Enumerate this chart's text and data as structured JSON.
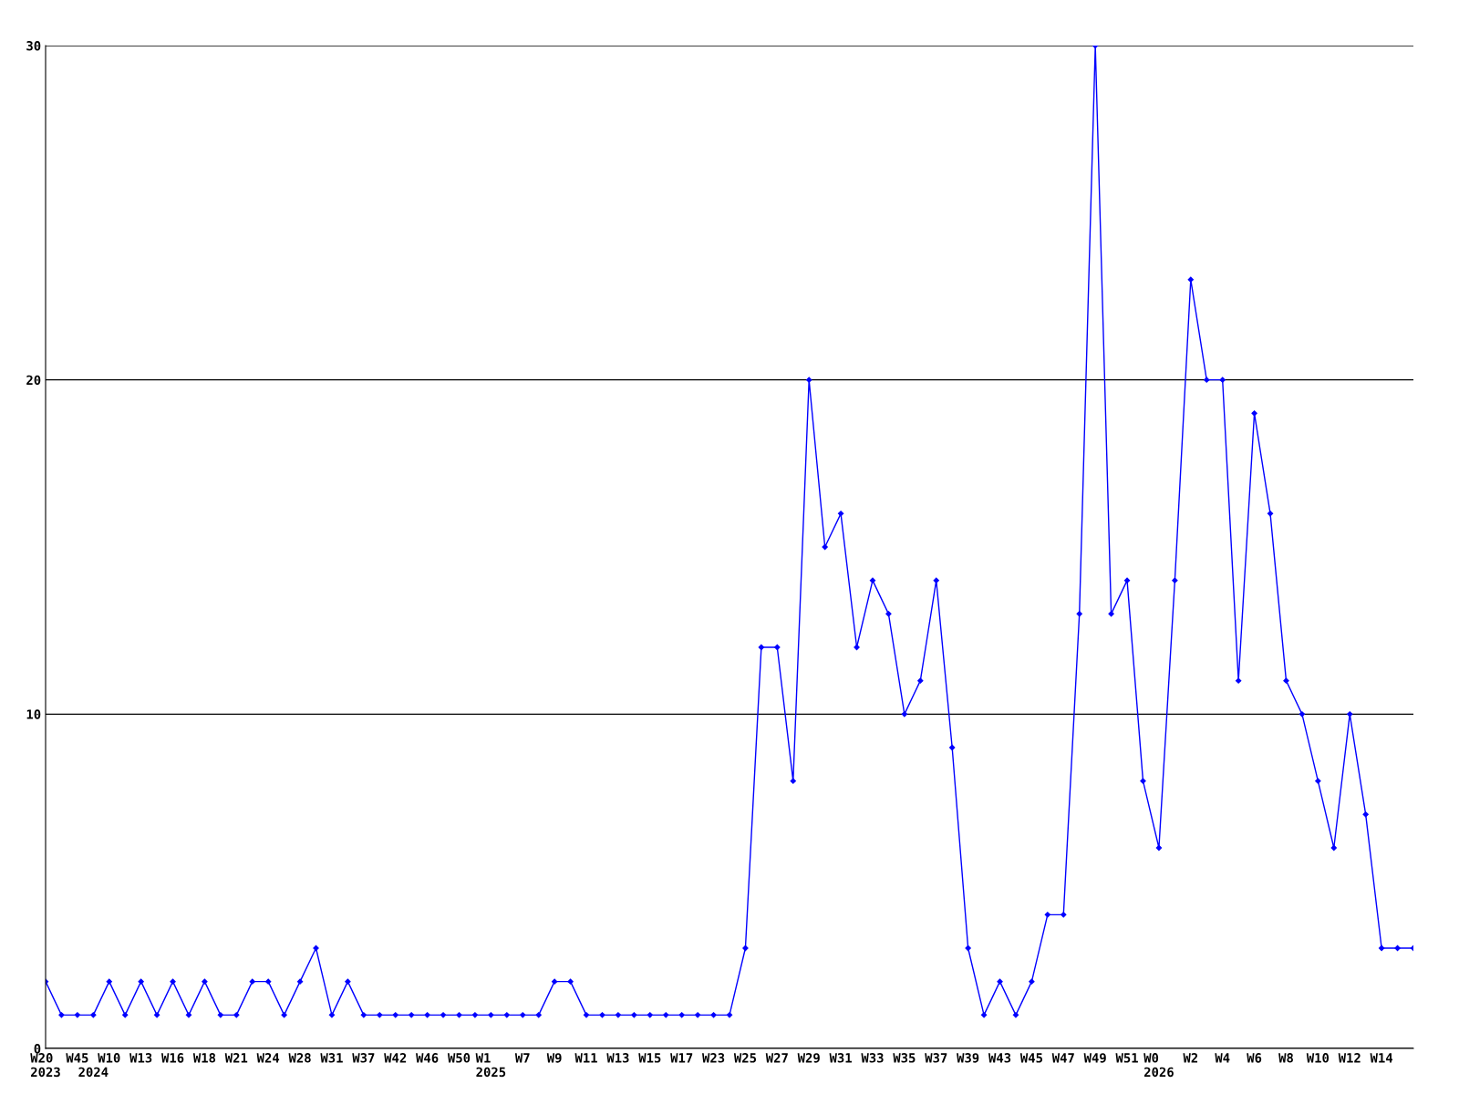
{
  "chart_data": {
    "type": "line",
    "categories": [
      "W20\n2023",
      null,
      "W45",
      "\n2024",
      "W10",
      null,
      "W13",
      null,
      "W16",
      null,
      "W18",
      null,
      "W21",
      null,
      "W24",
      null,
      "W28",
      null,
      "W31",
      null,
      "W37",
      null,
      "W42",
      null,
      "W46",
      null,
      "W50",
      null,
      "W1\n2025",
      null,
      "W7",
      null,
      "W9",
      null,
      "W11",
      null,
      "W13",
      null,
      "W15",
      null,
      "W17",
      null,
      "W23",
      null,
      "W25",
      null,
      "W27",
      null,
      "W29",
      null,
      "W31",
      null,
      "W33",
      null,
      "W35",
      null,
      "W37",
      null,
      "W39",
      null,
      "W43",
      null,
      "W45",
      null,
      "W47",
      null,
      "W49",
      null,
      "W51",
      null,
      "W0\n2026",
      null,
      "W2",
      null,
      "W4",
      null,
      "W6",
      null,
      "W8",
      null,
      "W10",
      null,
      "W12",
      null,
      "W14",
      null,
      null
    ],
    "series": [
      {
        "color": "#0000ff",
        "values": [
          2,
          1,
          1,
          1,
          2,
          1,
          2,
          1,
          2,
          1,
          2,
          1,
          1,
          2,
          2,
          1,
          2,
          3,
          1,
          2,
          1,
          1,
          1,
          1,
          1,
          1,
          1,
          1,
          1,
          1,
          1,
          1,
          2,
          2,
          1,
          1,
          1,
          1,
          1,
          1,
          1,
          1,
          1,
          1,
          3,
          12,
          12,
          8,
          20,
          15,
          16,
          12,
          14,
          13,
          10,
          11,
          14,
          9,
          3,
          1,
          2,
          1,
          2,
          4,
          4,
          13,
          30,
          13,
          14,
          8,
          6,
          14,
          23,
          20,
          20,
          11,
          19,
          16,
          11,
          10,
          8,
          6,
          10,
          7,
          3,
          3,
          3
        ]
      }
    ],
    "ylim": [
      0,
      30
    ],
    "yticks": [
      0,
      10,
      20,
      30
    ],
    "grid": "y",
    "marker": "diamond",
    "line_style": "solid"
  }
}
